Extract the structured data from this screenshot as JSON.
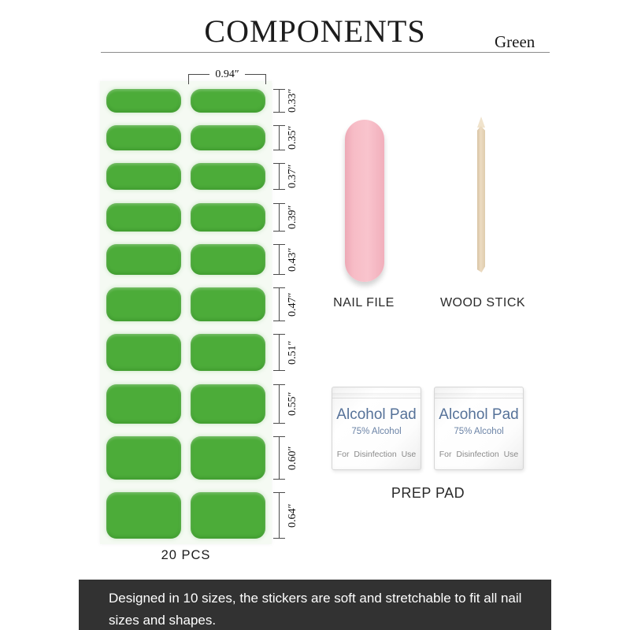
{
  "header": {
    "title": "COMPONENTS",
    "variant": "Green"
  },
  "sheet": {
    "width_label": "0.94″",
    "count_label": "20 PCS",
    "sizes": [
      {
        "label": "0.33″",
        "inches": 0.33
      },
      {
        "label": "0.35″",
        "inches": 0.35
      },
      {
        "label": "0.37″",
        "inches": 0.37
      },
      {
        "label": "0.39″",
        "inches": 0.39
      },
      {
        "label": "0.43″",
        "inches": 0.43
      },
      {
        "label": "0.47″",
        "inches": 0.47
      },
      {
        "label": "0.51″",
        "inches": 0.51
      },
      {
        "label": "0.55″",
        "inches": 0.55
      },
      {
        "label": "0.60″",
        "inches": 0.6
      },
      {
        "label": "0.64″",
        "inches": 0.64
      }
    ]
  },
  "tools": {
    "nail_file_label": "NAIL FILE",
    "wood_stick_label": "WOOD STICK"
  },
  "prep": {
    "label": "PREP PAD",
    "pads": [
      {
        "title": "Alcohol Pad",
        "subtitle": "75% Alcohol",
        "note": "For Disinfection Use"
      },
      {
        "title": "Alcohol Pad",
        "subtitle": "75% Alcohol",
        "note": "For Disinfection Use"
      }
    ]
  },
  "footer": {
    "text": "Designed in 10 sizes, the stickers are soft and stretchable to fit all nail sizes and shapes."
  },
  "colors": {
    "sticker_green": "#4cac39",
    "sheet_bg": "#f5faf3",
    "file_pink": "#f7bcc6",
    "wood_tan": "#e8d7bc",
    "pad_text_blue": "#567299",
    "footer_bg": "#323232"
  }
}
